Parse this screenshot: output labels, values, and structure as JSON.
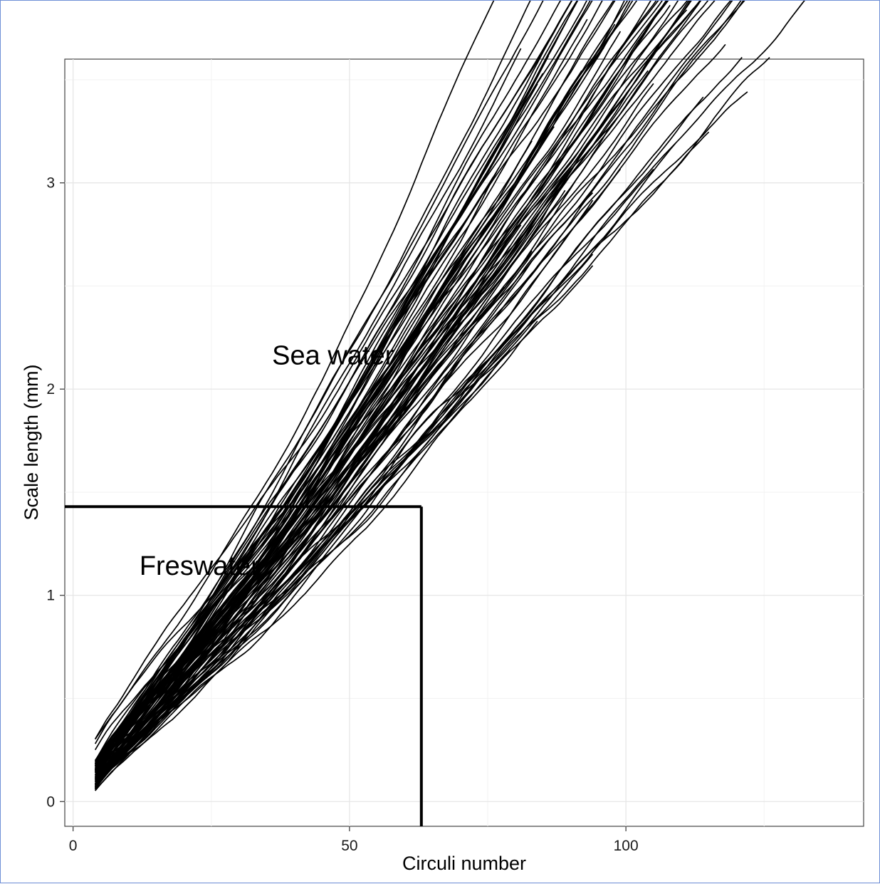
{
  "chart_data": {
    "type": "line",
    "title": "",
    "xlabel": "Circuli number",
    "ylabel": "Scale length (mm)",
    "xlim": [
      -1.5,
      143
    ],
    "ylim": [
      -0.12,
      3.6
    ],
    "x_ticks": [
      0,
      50,
      100
    ],
    "y_ticks": [
      0,
      1,
      2,
      3
    ],
    "x_minor_ticks": [
      25,
      75,
      125
    ],
    "y_minor_ticks": [
      0.5,
      1.5,
      2.5,
      3.5
    ],
    "grid": true,
    "legend": "none",
    "line_color": "#000000",
    "series_count": 90,
    "x_start": 4,
    "x_end_range": [
      70,
      137
    ],
    "start_y_range": [
      0.05,
      0.37
    ],
    "end_y_range": [
      1.68,
      3.55
    ],
    "annotations": [
      {
        "text": "Sea water",
        "x": 36,
        "y": 2.12
      },
      {
        "text": "Freswater",
        "x": 12,
        "y": 1.1
      }
    ],
    "reference_lines": [
      {
        "orientation": "horizontal",
        "y": 1.43,
        "x_from": -1.5,
        "x_to": 63
      },
      {
        "orientation": "vertical",
        "x": 63,
        "y_from": 1.43,
        "y_to": -0.12
      }
    ]
  }
}
